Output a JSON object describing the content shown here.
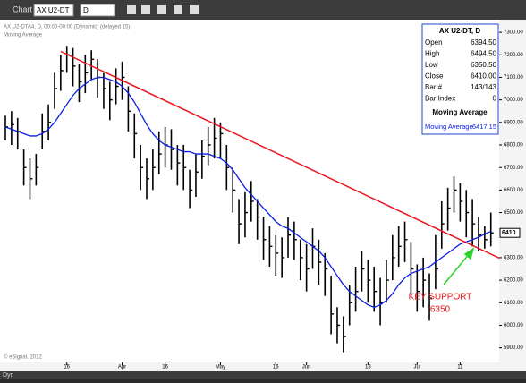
{
  "window": {
    "title": "Chart",
    "symbol": "AX U2-DT",
    "interval": "D",
    "footer": "Dyn"
  },
  "chart_data": {
    "type": "ohlc",
    "title": "AX U2-DTA4, D, 00:00-00:00 (Dynamic) (delayed 15)",
    "subtitle": "Moving Average",
    "copyright": "© eSignal, 2012",
    "categories": [
      null,
      null,
      null,
      null,
      null,
      null,
      null,
      null,
      null,
      null,
      "16",
      null,
      null,
      null,
      null,
      null,
      null,
      null,
      null,
      "Apr",
      null,
      null,
      null,
      null,
      null,
      null,
      "16",
      null,
      null,
      null,
      null,
      null,
      null,
      null,
      null,
      "May",
      null,
      null,
      null,
      null,
      null,
      null,
      null,
      null,
      "16",
      null,
      null,
      null,
      null,
      "Jun",
      null,
      null,
      null,
      null,
      null,
      null,
      null,
      null,
      null,
      "18",
      null,
      null,
      null,
      null,
      null,
      null,
      null,
      "Jul",
      null,
      null,
      null,
      null,
      null,
      null,
      "11",
      null,
      null,
      null,
      null,
      null
    ],
    "highs": [
      6930,
      6950,
      6920,
      6780,
      6740,
      6760,
      6940,
      6980,
      7120,
      7200,
      7240,
      7230,
      7160,
      7200,
      7220,
      7180,
      7120,
      7080,
      7140,
      7170,
      7060,
      6940,
      6800,
      6740,
      6780,
      6860,
      6880,
      6870,
      6800,
      6800,
      6690,
      6760,
      6820,
      6880,
      6920,
      6900,
      6800,
      6700,
      6560,
      6590,
      6640,
      6560,
      6480,
      6440,
      6400,
      6390,
      6480,
      6460,
      6380,
      6360,
      6430,
      6380,
      6320,
      6220,
      6080,
      6040,
      6180,
      6260,
      6330,
      6290,
      6260,
      6210,
      6290,
      6400,
      6440,
      6460,
      6370,
      6270,
      6300,
      6230,
      6400,
      6550,
      6610,
      6660,
      6630,
      6600,
      6560,
      6480,
      6440,
      6500
    ],
    "lows": [
      6820,
      6800,
      6780,
      6620,
      6560,
      6620,
      6780,
      6820,
      6960,
      7040,
      7120,
      7060,
      6990,
      7030,
      7090,
      7010,
      6960,
      6910,
      6980,
      7000,
      6860,
      6740,
      6600,
      6560,
      6600,
      6670,
      6700,
      6690,
      6620,
      6600,
      6520,
      6570,
      6650,
      6710,
      6740,
      6740,
      6600,
      6500,
      6360,
      6390,
      6460,
      6380,
      6290,
      6260,
      6220,
      6210,
      6300,
      6290,
      6200,
      6150,
      6250,
      6180,
      6130,
      5960,
      5920,
      5880,
      6000,
      6060,
      6150,
      6100,
      6060,
      6000,
      6100,
      6200,
      6260,
      6280,
      6140,
      6060,
      6080,
      6020,
      6160,
      6340,
      6420,
      6500,
      6460,
      6390,
      6350,
      6330,
      6340,
      6350
    ],
    "closes": [
      6880,
      6890,
      6860,
      6700,
      6650,
      6700,
      6860,
      6900,
      7050,
      7130,
      7200,
      7150,
      7080,
      7120,
      7180,
      7100,
      7050,
      7000,
      7060,
      7100,
      6950,
      6850,
      6700,
      6650,
      6700,
      6760,
      6800,
      6780,
      6720,
      6700,
      6600,
      6680,
      6750,
      6800,
      6830,
      6850,
      6700,
      6600,
      6450,
      6500,
      6550,
      6480,
      6380,
      6350,
      6320,
      6300,
      6400,
      6380,
      6300,
      6250,
      6350,
      6280,
      6250,
      6050,
      6000,
      5950,
      6100,
      6150,
      6250,
      6200,
      6150,
      6100,
      6200,
      6300,
      6350,
      6380,
      6250,
      6150,
      6200,
      6120,
      6250,
      6450,
      6520,
      6600,
      6550,
      6500,
      6450,
      6400,
      6380,
      6410
    ],
    "bar_color": "#000000",
    "series": [
      {
        "name": "Moving Average",
        "color": "#0a1ee6",
        "values": [
          6880,
          6870,
          6860,
          6850,
          6840,
          6840,
          6850,
          6870,
          6900,
          6940,
          6980,
          7020,
          7050,
          7070,
          7090,
          7100,
          7100,
          7090,
          7080,
          7060,
          7030,
          6990,
          6940,
          6890,
          6850,
          6820,
          6800,
          6790,
          6780,
          6770,
          6770,
          6760,
          6760,
          6760,
          6750,
          6740,
          6720,
          6690,
          6650,
          6610,
          6580,
          6550,
          6520,
          6490,
          6460,
          6440,
          6430,
          6410,
          6390,
          6370,
          6350,
          6330,
          6300,
          6260,
          6220,
          6180,
          6150,
          6130,
          6110,
          6090,
          6080,
          6090,
          6110,
          6140,
          6180,
          6210,
          6230,
          6240,
          6250,
          6260,
          6280,
          6300,
          6320,
          6340,
          6360,
          6370,
          6380,
          6390,
          6405,
          6417.15
        ]
      }
    ],
    "trendline": {
      "color": "#e8141c",
      "x": [
        9,
        81
      ],
      "values": [
        7215,
        6290
      ]
    },
    "last_price": 6410,
    "annotation": {
      "lines": [
        "KEY SUPPORT",
        "6350"
      ],
      "color": "#e8141c"
    },
    "ylim": [
      5835,
      7356
    ],
    "yticks": [
      {
        "value": 5900,
        "label": "5900.00"
      },
      {
        "value": 6000,
        "label": "6000.00"
      },
      {
        "value": 6100,
        "label": "6100.00"
      },
      {
        "value": 6200,
        "label": "6200.00"
      },
      {
        "value": 6300,
        "label": "6300.00"
      },
      {
        "value": 6500,
        "label": "6500.00"
      },
      {
        "value": 6600,
        "label": "6600.00"
      },
      {
        "value": 6700,
        "label": "6700.00"
      },
      {
        "value": 6800,
        "label": "6800.00"
      },
      {
        "value": 6900,
        "label": "6900.00"
      },
      {
        "value": 7000,
        "label": "7000.00"
      },
      {
        "value": 7100,
        "label": "7100.00"
      },
      {
        "value": 7200,
        "label": "7200.00"
      },
      {
        "value": 7300,
        "label": "7300.00"
      }
    ]
  },
  "data_window": {
    "title": "AX U2-DT, D",
    "rows": [
      [
        "Open",
        "6394.50"
      ],
      [
        "High",
        "6494.50"
      ],
      [
        "Low",
        "6350.50"
      ],
      [
        "Close",
        "6410.00"
      ],
      [
        "Bar #",
        "143/143"
      ],
      [
        "Bar Index",
        "0"
      ]
    ],
    "section": "Moving Average",
    "ma_row": [
      "Moving Average",
      "6417.15"
    ]
  }
}
